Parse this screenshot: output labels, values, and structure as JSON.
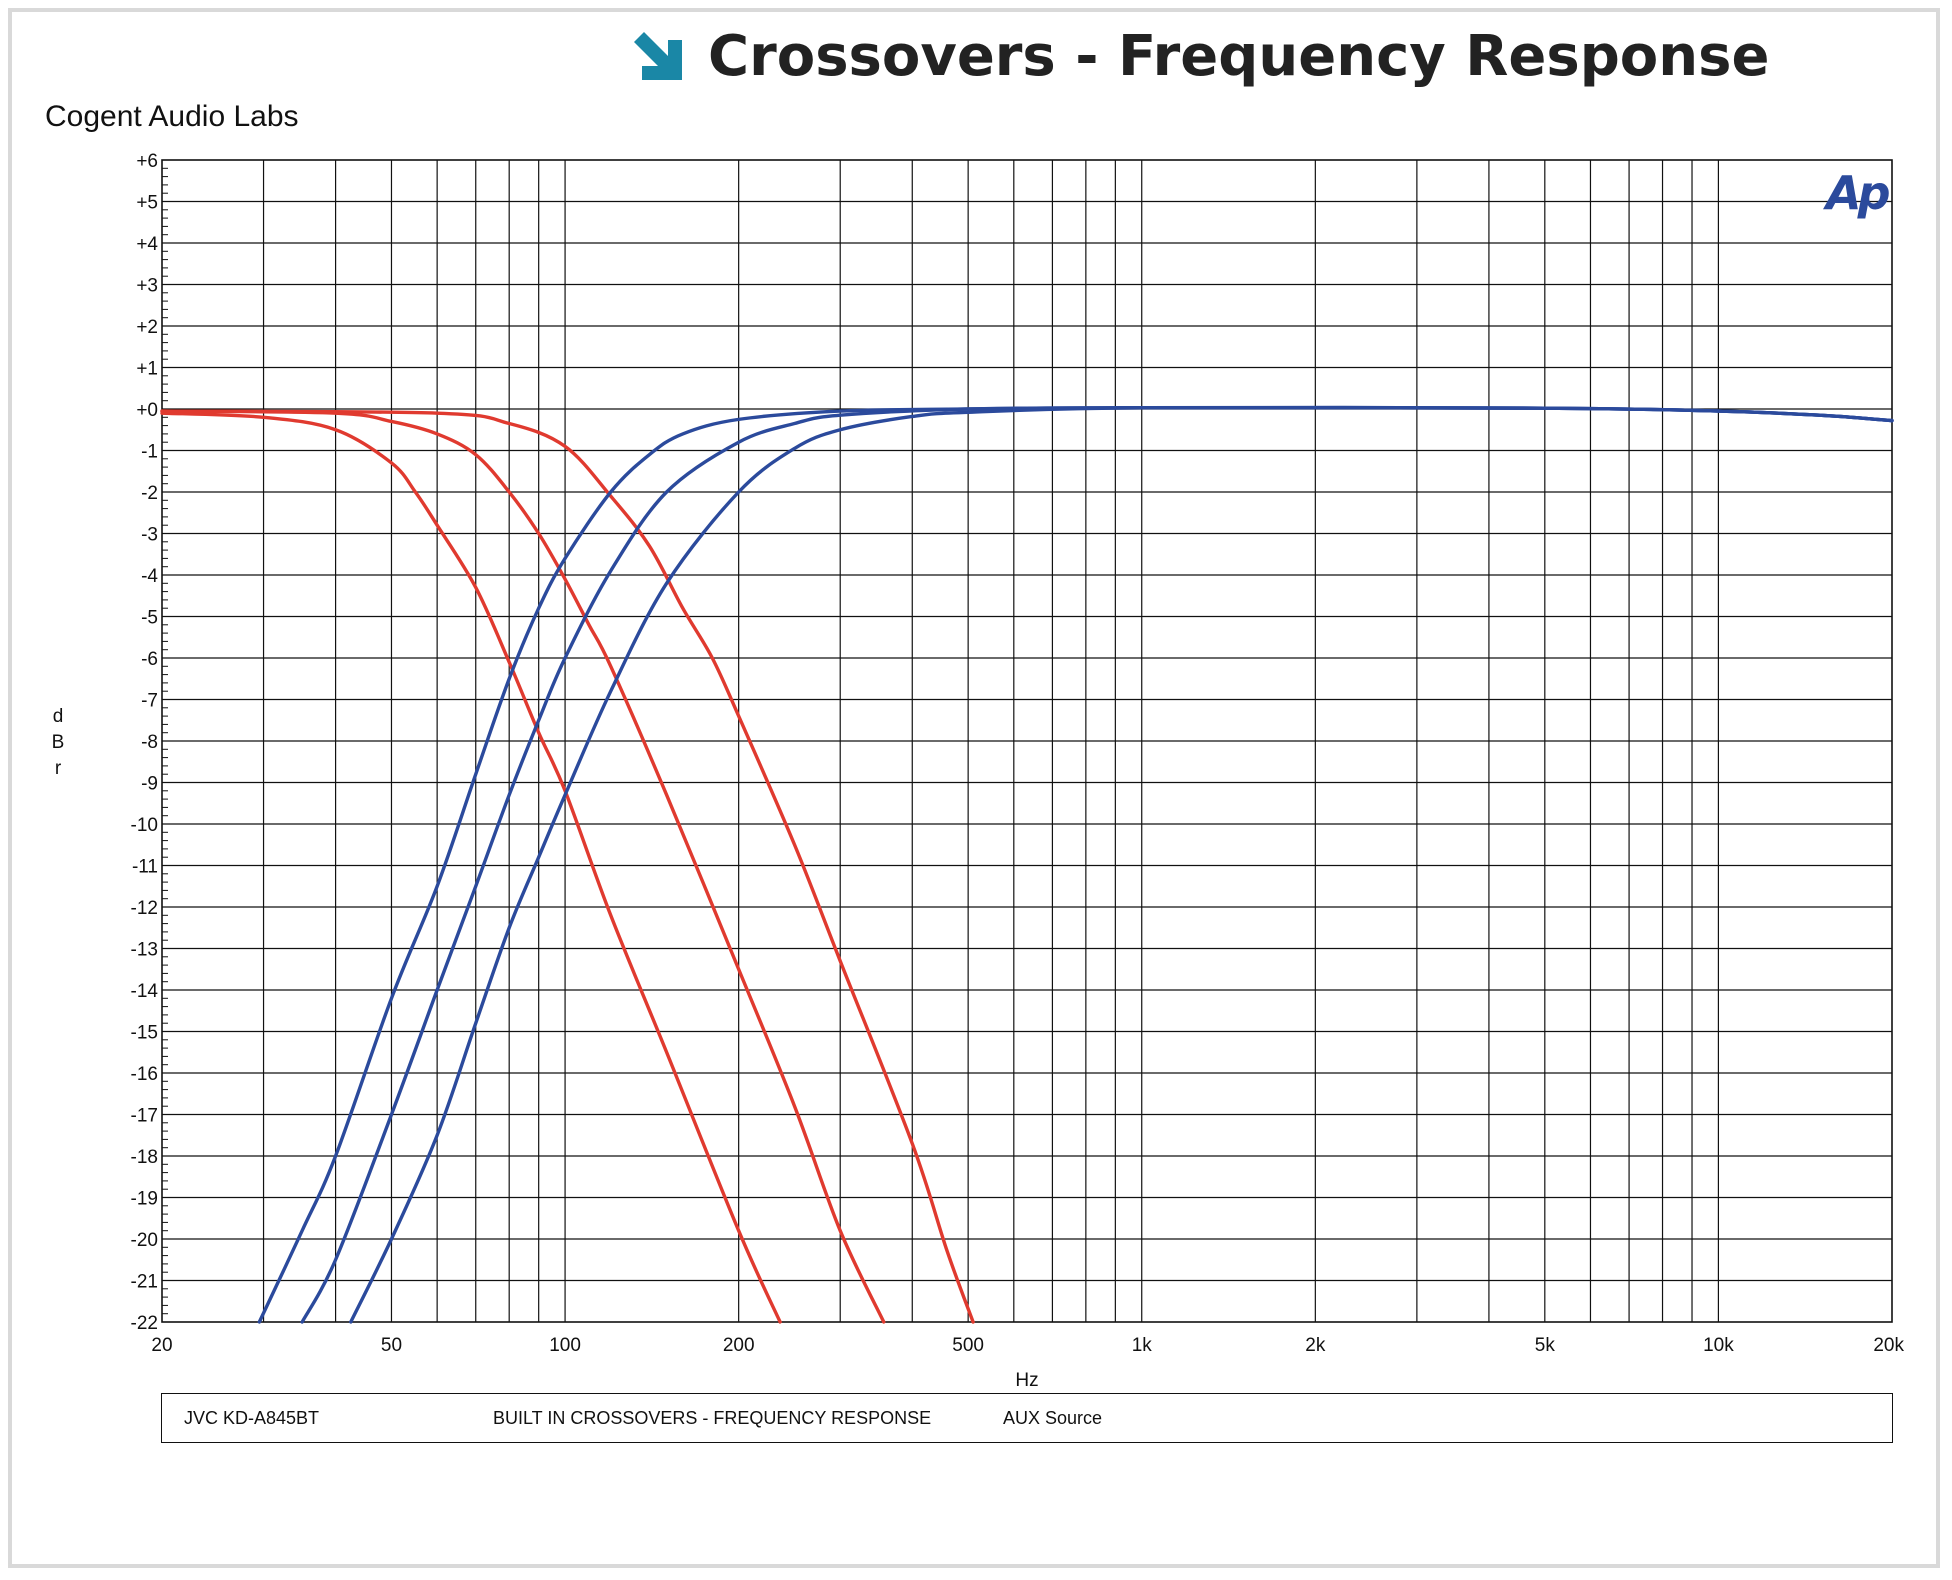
{
  "page": {
    "title": "Crossovers - Frequency Response",
    "brand": "Cogent Audio Labs",
    "logo": "Ap",
    "title_icon": "arrow-down-right-icon",
    "accent_color": "#1a87a6"
  },
  "footer": {
    "model": "JVC  KD-A845BT",
    "description": "BUILT IN CROSSOVERS  -  FREQUENCY RESPONSE",
    "source": "AUX Source"
  },
  "chart_data": {
    "type": "line",
    "title": "Crossovers - Frequency Response",
    "xlabel": "Hz",
    "ylabel": "dBr",
    "x_scale": "log",
    "xlim": [
      20,
      20000
    ],
    "ylim": [
      -22,
      6
    ],
    "grid": true,
    "x_ticks": [
      {
        "value": 20,
        "label": "20"
      },
      {
        "value": 50,
        "label": "50"
      },
      {
        "value": 100,
        "label": "100"
      },
      {
        "value": 200,
        "label": "200"
      },
      {
        "value": 500,
        "label": "500"
      },
      {
        "value": 1000,
        "label": "1k"
      },
      {
        "value": 2000,
        "label": "2k"
      },
      {
        "value": 5000,
        "label": "5k"
      },
      {
        "value": 10000,
        "label": "10k"
      },
      {
        "value": 20000,
        "label": "20k"
      }
    ],
    "y_ticks": [
      {
        "value": 6,
        "label": "+6"
      },
      {
        "value": 5,
        "label": "+5"
      },
      {
        "value": 4,
        "label": "+4"
      },
      {
        "value": 3,
        "label": "+3"
      },
      {
        "value": 2,
        "label": "+2"
      },
      {
        "value": 1,
        "label": "+1"
      },
      {
        "value": 0,
        "label": "+0"
      },
      {
        "value": -1,
        "label": "-1"
      },
      {
        "value": -2,
        "label": "-2"
      },
      {
        "value": -3,
        "label": "-3"
      },
      {
        "value": -4,
        "label": "-4"
      },
      {
        "value": -5,
        "label": "-5"
      },
      {
        "value": -6,
        "label": "-6"
      },
      {
        "value": -7,
        "label": "-7"
      },
      {
        "value": -8,
        "label": "-8"
      },
      {
        "value": -9,
        "label": "-9"
      },
      {
        "value": -10,
        "label": "-10"
      },
      {
        "value": -11,
        "label": "-11"
      },
      {
        "value": -12,
        "label": "-12"
      },
      {
        "value": -13,
        "label": "-13"
      },
      {
        "value": -14,
        "label": "-14"
      },
      {
        "value": -15,
        "label": "-15"
      },
      {
        "value": -16,
        "label": "-16"
      },
      {
        "value": -17,
        "label": "-17"
      },
      {
        "value": -18,
        "label": "-18"
      },
      {
        "value": -19,
        "label": "-19"
      },
      {
        "value": -20,
        "label": "-20"
      },
      {
        "value": -21,
        "label": "-21"
      },
      {
        "value": -22,
        "label": "-22"
      }
    ],
    "series": [
      {
        "color": "#e03a2f",
        "points": [
          [
            20,
            -0.1
          ],
          [
            30,
            -0.2
          ],
          [
            40,
            -0.5
          ],
          [
            50,
            -1.3
          ],
          [
            55,
            -2.0
          ],
          [
            60,
            -2.8
          ],
          [
            70,
            -4.3
          ],
          [
            80,
            -6.1
          ],
          [
            90,
            -7.8
          ],
          [
            100,
            -9.2
          ],
          [
            120,
            -12.2
          ],
          [
            150,
            -15.5
          ],
          [
            200,
            -19.8
          ],
          [
            236,
            -22
          ]
        ]
      },
      {
        "color": "#e03a2f",
        "points": [
          [
            20,
            -0.05
          ],
          [
            40,
            -0.1
          ],
          [
            50,
            -0.3
          ],
          [
            60,
            -0.6
          ],
          [
            70,
            -1.1
          ],
          [
            80,
            -2.0
          ],
          [
            90,
            -3.0
          ],
          [
            100,
            -4.1
          ],
          [
            110,
            -5.2
          ],
          [
            120,
            -6.2
          ],
          [
            150,
            -9.3
          ],
          [
            200,
            -13.5
          ],
          [
            250,
            -16.8
          ],
          [
            300,
            -19.8
          ],
          [
            357,
            -22
          ]
        ]
      },
      {
        "color": "#e03a2f",
        "points": [
          [
            20,
            -0.05
          ],
          [
            60,
            -0.1
          ],
          [
            80,
            -0.35
          ],
          [
            100,
            -0.9
          ],
          [
            120,
            -2.1
          ],
          [
            140,
            -3.3
          ],
          [
            160,
            -4.8
          ],
          [
            180,
            -6.0
          ],
          [
            200,
            -7.4
          ],
          [
            250,
            -10.5
          ],
          [
            300,
            -13.3
          ],
          [
            400,
            -17.7
          ],
          [
            460,
            -20.3
          ],
          [
            510,
            -22
          ]
        ]
      },
      {
        "color": "#2b4a9c",
        "points": [
          [
            29.5,
            -22
          ],
          [
            35,
            -19.8
          ],
          [
            40,
            -18.0
          ],
          [
            50,
            -14.2
          ],
          [
            60,
            -11.5
          ],
          [
            70,
            -8.8
          ],
          [
            80,
            -6.5
          ],
          [
            90,
            -4.8
          ],
          [
            100,
            -3.6
          ],
          [
            120,
            -2.0
          ],
          [
            140,
            -1.1
          ],
          [
            160,
            -0.6
          ],
          [
            200,
            -0.25
          ],
          [
            300,
            -0.05
          ],
          [
            500,
            0
          ],
          [
            1000,
            0.03
          ],
          [
            5000,
            0.02
          ],
          [
            10000,
            -0.05
          ],
          [
            15000,
            -0.15
          ],
          [
            20000,
            -0.28
          ]
        ]
      },
      {
        "color": "#2b4a9c",
        "points": [
          [
            35,
            -22
          ],
          [
            40,
            -20.5
          ],
          [
            50,
            -17.0
          ],
          [
            60,
            -14.0
          ],
          [
            70,
            -11.5
          ],
          [
            80,
            -9.3
          ],
          [
            90,
            -7.5
          ],
          [
            100,
            -6.0
          ],
          [
            120,
            -3.9
          ],
          [
            150,
            -2.0
          ],
          [
            200,
            -0.8
          ],
          [
            250,
            -0.35
          ],
          [
            300,
            -0.15
          ],
          [
            500,
            0
          ],
          [
            1000,
            0.03
          ],
          [
            5000,
            0.02
          ],
          [
            10000,
            -0.05
          ],
          [
            15000,
            -0.15
          ],
          [
            20000,
            -0.28
          ]
        ]
      },
      {
        "color": "#2b4a9c",
        "points": [
          [
            42.5,
            -22
          ],
          [
            50,
            -20.0
          ],
          [
            60,
            -17.5
          ],
          [
            70,
            -14.8
          ],
          [
            80,
            -12.5
          ],
          [
            90,
            -10.8
          ],
          [
            100,
            -9.3
          ],
          [
            120,
            -6.8
          ],
          [
            150,
            -4.2
          ],
          [
            200,
            -2.0
          ],
          [
            250,
            -0.95
          ],
          [
            300,
            -0.5
          ],
          [
            400,
            -0.18
          ],
          [
            500,
            -0.08
          ],
          [
            1000,
            0.03
          ],
          [
            5000,
            0.02
          ],
          [
            10000,
            -0.05
          ],
          [
            15000,
            -0.15
          ],
          [
            20000,
            -0.28
          ]
        ]
      }
    ]
  }
}
